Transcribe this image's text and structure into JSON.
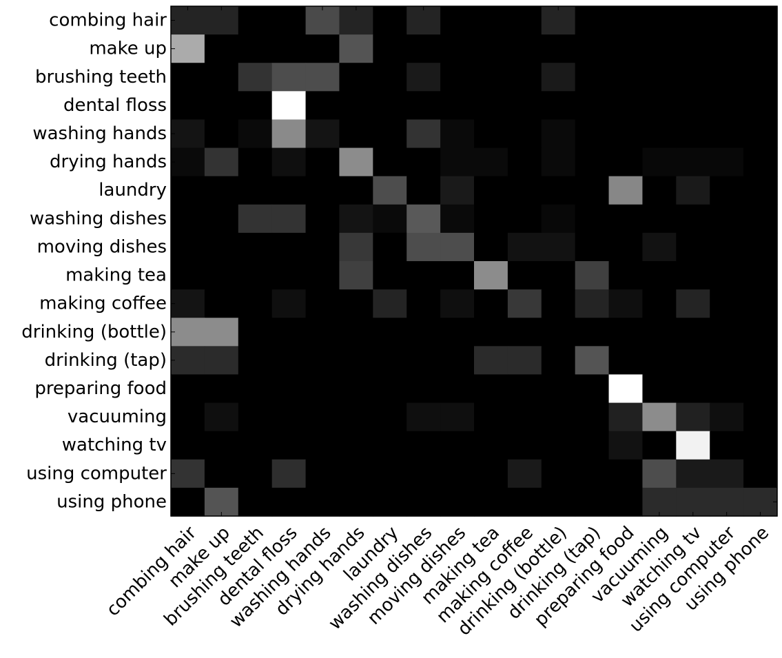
{
  "chart_data": {
    "type": "heatmap",
    "colormap": "grayscale (black = 0, white = max)",
    "color_low": "#000000",
    "color_high": "#ffffff",
    "frame_color": "#000000",
    "background": "#ffffff",
    "grid": false,
    "legend": "none",
    "value_range": [
      0,
      1
    ],
    "row_labels": [
      "combing hair",
      "make up",
      "brushing teeth",
      "dental floss",
      "washing hands",
      "drying hands",
      "laundry",
      "washing dishes",
      "moving dishes",
      "making tea",
      "making coffee",
      "drinking (bottle)",
      "drinking (tap)",
      "preparing food",
      "vacuuming",
      "watching tv",
      "using computer",
      "using phone"
    ],
    "col_labels": [
      "combing hair",
      "make up",
      "brushing teeth",
      "dental floss",
      "washing hands",
      "drying hands",
      "laundry",
      "washing dishes",
      "moving dishes",
      "making tea",
      "making coffee",
      "drinking (bottle)",
      "drinking (tap)",
      "preparing food",
      "vacuuming",
      "watching tv",
      "using computer",
      "using phone"
    ],
    "values": [
      [
        0.14,
        0.14,
        0,
        0,
        0.29,
        0.14,
        0,
        0.14,
        0,
        0,
        0,
        0.14,
        0,
        0,
        0,
        0,
        0,
        0
      ],
      [
        0.67,
        0,
        0,
        0,
        0,
        0.33,
        0,
        0,
        0,
        0,
        0,
        0,
        0,
        0,
        0,
        0,
        0,
        0
      ],
      [
        0,
        0,
        0.2,
        0.3,
        0.3,
        0,
        0,
        0.1,
        0,
        0,
        0,
        0.1,
        0,
        0,
        0,
        0,
        0,
        0
      ],
      [
        0,
        0,
        0,
        1.0,
        0,
        0,
        0,
        0,
        0,
        0,
        0,
        0,
        0,
        0,
        0,
        0,
        0,
        0
      ],
      [
        0.08,
        0,
        0.04,
        0.54,
        0.08,
        0,
        0,
        0.2,
        0.04,
        0,
        0,
        0.04,
        0,
        0,
        0,
        0,
        0,
        0
      ],
      [
        0.04,
        0.2,
        0,
        0.06,
        0,
        0.55,
        0,
        0,
        0.04,
        0.04,
        0,
        0.04,
        0,
        0,
        0.03,
        0.03,
        0.03,
        0
      ],
      [
        0,
        0,
        0,
        0,
        0,
        0,
        0.3,
        0,
        0.1,
        0,
        0,
        0,
        0,
        0.53,
        0,
        0.1,
        0,
        0
      ],
      [
        0,
        0,
        0.2,
        0.2,
        0,
        0.08,
        0.04,
        0.35,
        0.04,
        0,
        0,
        0.03,
        0,
        0,
        0,
        0,
        0,
        0
      ],
      [
        0,
        0,
        0,
        0,
        0,
        0.22,
        0,
        0.3,
        0.3,
        0,
        0.07,
        0.07,
        0,
        0,
        0.07,
        0,
        0,
        0
      ],
      [
        0,
        0,
        0,
        0,
        0,
        0.25,
        0,
        0,
        0,
        0.55,
        0,
        0,
        0.25,
        0,
        0,
        0,
        0,
        0
      ],
      [
        0.08,
        0,
        0,
        0.06,
        0,
        0,
        0.14,
        0,
        0.06,
        0,
        0.22,
        0,
        0.14,
        0.06,
        0,
        0.14,
        0,
        0
      ],
      [
        0.55,
        0.55,
        0,
        0,
        0,
        0,
        0,
        0,
        0,
        0,
        0,
        0,
        0,
        0,
        0,
        0,
        0,
        0
      ],
      [
        0.17,
        0.17,
        0,
        0,
        0,
        0,
        0,
        0,
        0,
        0.17,
        0.17,
        0,
        0.33,
        0,
        0,
        0,
        0,
        0
      ],
      [
        0,
        0,
        0,
        0,
        0,
        0,
        0,
        0,
        0,
        0,
        0,
        0,
        0,
        1.0,
        0,
        0,
        0,
        0
      ],
      [
        0,
        0.06,
        0,
        0,
        0,
        0,
        0,
        0.06,
        0.06,
        0,
        0,
        0,
        0,
        0.13,
        0.55,
        0.13,
        0.06,
        0
      ],
      [
        0,
        0,
        0,
        0,
        0,
        0,
        0,
        0,
        0,
        0,
        0,
        0,
        0,
        0.07,
        0,
        0.95,
        0,
        0
      ],
      [
        0.2,
        0,
        0,
        0.18,
        0,
        0,
        0,
        0,
        0,
        0,
        0.1,
        0,
        0,
        0,
        0.3,
        0.1,
        0.1,
        0
      ],
      [
        0,
        0.33,
        0,
        0,
        0,
        0,
        0,
        0,
        0,
        0,
        0,
        0,
        0,
        0,
        0.17,
        0.17,
        0.17,
        0.17
      ]
    ]
  }
}
